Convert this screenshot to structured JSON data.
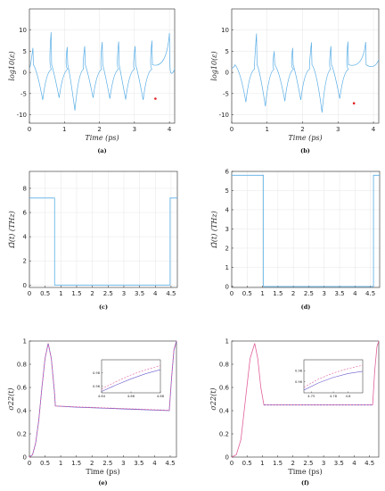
{
  "figure": {
    "colors": {
      "blue": "#5aaee6",
      "purple": "#6a5acd",
      "pink": "#e0609a",
      "red": "#e02020",
      "axis": "#262626",
      "grid": "#e6e6e6"
    }
  },
  "chart_data": [
    {
      "id": "a",
      "caption": "(a)",
      "type": "line",
      "xlabel": "Time (ps)",
      "ylabel": "log10(ε)",
      "xlim": [
        0,
        4.15
      ],
      "ylim": [
        -12,
        15
      ],
      "xticks": [
        0,
        1,
        2,
        3,
        4
      ],
      "yticks": [
        -10,
        -5,
        0,
        5,
        10
      ],
      "grid": true,
      "series": [
        {
          "cusps": [
            {
              "x": 0.38,
              "y": -6.5
            },
            {
              "x": 0.85,
              "y": -6.0
            },
            {
              "x": 1.3,
              "y": -9.0
            },
            {
              "x": 1.82,
              "y": -6.0
            },
            {
              "x": 2.3,
              "y": -6.2
            },
            {
              "x": 2.75,
              "y": -6.4
            },
            {
              "x": 3.25,
              "y": -6.5
            }
          ],
          "peaks": [
            {
              "x": 0.1,
              "y": 5.8
            },
            {
              "x": 0.62,
              "y": 9.5
            },
            {
              "x": 1.08,
              "y": 6.0
            },
            {
              "x": 1.58,
              "y": 6.2
            },
            {
              "x": 2.08,
              "y": 7.2
            },
            {
              "x": 2.55,
              "y": 7.3
            },
            {
              "x": 3.02,
              "y": 6.2
            },
            {
              "x": 3.5,
              "y": 7.5
            },
            {
              "x": 4.0,
              "y": 9.3
            }
          ],
          "end": {
            "x": 4.15,
            "y": 0.8
          }
        }
      ],
      "marker": {
        "x": 3.6,
        "y": -6.2
      }
    },
    {
      "id": "b",
      "caption": "(b)",
      "type": "line",
      "xlabel": "Time (ps)",
      "ylabel": "log10(ε)",
      "xlim": [
        0,
        4.15
      ],
      "ylim": [
        -12,
        15
      ],
      "xticks": [
        0,
        1,
        2,
        3,
        4
      ],
      "yticks": [
        -10,
        -5,
        0,
        5,
        10
      ],
      "grid": true,
      "series": [
        {
          "cusps": [
            {
              "x": 0.4,
              "y": -7.0
            },
            {
              "x": 0.95,
              "y": -8.0
            },
            {
              "x": 1.5,
              "y": -6.8
            },
            {
              "x": 1.95,
              "y": -6.5
            },
            {
              "x": 2.55,
              "y": -9.5
            },
            {
              "x": 3.05,
              "y": -6.2
            }
          ],
          "peaks": [
            {
              "x": 0.08,
              "y": 1.5
            },
            {
              "x": 0.7,
              "y": 9.2
            },
            {
              "x": 1.2,
              "y": 5.0
            },
            {
              "x": 1.72,
              "y": 5.8
            },
            {
              "x": 2.25,
              "y": 7.1
            },
            {
              "x": 2.8,
              "y": 6.2
            },
            {
              "x": 3.28,
              "y": 7.3
            },
            {
              "x": 3.78,
              "y": 7.2
            }
          ],
          "end": {
            "x": 4.15,
            "y": 3.0
          }
        }
      ],
      "marker": {
        "x": 3.45,
        "y": -7.3
      }
    },
    {
      "id": "c",
      "caption": "(c)",
      "type": "line",
      "xlabel": "",
      "ylabel": "Ω̃(t) (THz)",
      "xlim": [
        0,
        4.7
      ],
      "ylim": [
        -0.2,
        9.4
      ],
      "xticks": [
        0,
        0.5,
        1,
        1.5,
        2,
        2.5,
        3,
        3.5,
        4,
        4.5
      ],
      "yticks": [
        0,
        2,
        4,
        6,
        8
      ],
      "xticklabels": [
        "0",
        "0.5",
        "1",
        "1.5",
        "2",
        "2.5",
        "3",
        "3.5",
        "4",
        "4.5"
      ],
      "grid": true,
      "series": [
        {
          "name": "",
          "x": [
            0,
            0.8,
            0.8,
            4.47,
            4.47,
            4.7
          ],
          "y": [
            7.2,
            7.2,
            0,
            0,
            7.2,
            7.2
          ]
        }
      ]
    },
    {
      "id": "d",
      "caption": "(d)",
      "type": "line",
      "xlabel": "",
      "ylabel": "Ω̃(t) (THz)",
      "xlim": [
        0,
        4.8
      ],
      "ylim": [
        -0.05,
        6
      ],
      "xticks": [
        0,
        0.5,
        1,
        1.5,
        2,
        2.5,
        3,
        3.5,
        4,
        4.5
      ],
      "yticks": [
        0,
        1,
        2,
        3,
        4,
        5,
        6
      ],
      "xticklabels": [
        "0",
        "0.5",
        "1",
        "1.5",
        "2",
        "2.5",
        "3",
        "3.5",
        "4",
        "4.5"
      ],
      "grid": true,
      "series": [
        {
          "name": "",
          "x": [
            0,
            1.03,
            1.03,
            4.6,
            4.6,
            4.8
          ],
          "y": [
            5.8,
            5.8,
            0,
            0,
            5.8,
            5.8
          ]
        }
      ]
    },
    {
      "id": "e",
      "caption": "(e)",
      "type": "line",
      "xlabel": "Time (ps)",
      "ylabel": "σ22(t)",
      "xlim": [
        0,
        4.7
      ],
      "ylim": [
        0,
        1
      ],
      "xticks": [
        0,
        0.5,
        1,
        1.5,
        2,
        2.5,
        3,
        3.5,
        4,
        4.5
      ],
      "yticks": [
        0,
        0.2,
        0.4,
        0.6,
        0.8,
        1
      ],
      "xticklabels": [
        "0",
        "0.5",
        "1",
        "1.5",
        "2",
        "2.5",
        "3",
        "3.5",
        "4",
        "4.5"
      ],
      "grid": false,
      "series": [
        {
          "name": "",
          "color": "purple",
          "x": [
            0,
            0.1,
            0.2,
            0.3,
            0.4,
            0.5,
            0.6,
            0.7,
            0.8,
            0.83,
            1.5,
            2,
            2.5,
            3,
            3.5,
            4,
            4.47,
            4.55,
            4.62,
            4.7
          ],
          "y": [
            0,
            0.02,
            0.12,
            0.32,
            0.6,
            0.85,
            0.98,
            0.85,
            0.56,
            0.44,
            0.43,
            0.425,
            0.42,
            0.415,
            0.41,
            0.405,
            0.4,
            0.7,
            0.92,
            1.0
          ]
        },
        {
          "name": "",
          "color": "pink",
          "dashed": true,
          "x": [
            0,
            0.1,
            0.2,
            0.3,
            0.4,
            0.5,
            0.6,
            0.7,
            0.8,
            0.83,
            1.5,
            2,
            2.5,
            3,
            3.5,
            4,
            4.47,
            4.55,
            4.62,
            4.7
          ],
          "y": [
            0,
            0.02,
            0.12,
            0.32,
            0.6,
            0.85,
            0.98,
            0.85,
            0.56,
            0.44,
            0.433,
            0.428,
            0.423,
            0.418,
            0.413,
            0.408,
            0.403,
            0.71,
            0.93,
            1.0
          ]
        }
      ],
      "inset": {
        "xlim": [
          4.64,
          4.68
        ],
        "ylim": [
          0.95,
          1.0
        ],
        "xticks": [
          4.64,
          4.66,
          4.68
        ],
        "yticks": [
          0.96,
          0.98
        ],
        "xticklabels": [
          "4.64",
          "4.66",
          "4.68"
        ],
        "yticklabels": [
          "0.96",
          "0.98"
        ],
        "series": [
          {
            "color": "purple",
            "x": [
              4.64,
              4.65,
              4.66,
              4.67,
              4.68
            ],
            "y": [
              0.952,
              0.962,
              0.971,
              0.979,
              0.985
            ]
          },
          {
            "color": "pink",
            "dashed": true,
            "x": [
              4.64,
              4.65,
              4.66,
              4.67,
              4.68
            ],
            "y": [
              0.956,
              0.967,
              0.977,
              0.985,
              0.991
            ]
          }
        ]
      }
    },
    {
      "id": "f",
      "caption": "(f)",
      "type": "line",
      "xlabel": "Time (ps)",
      "ylabel": "σ22(t)",
      "xlim": [
        0,
        4.8
      ],
      "ylim": [
        0,
        1
      ],
      "xticks": [
        0,
        0.5,
        1,
        1.5,
        2,
        2.5,
        3,
        3.5,
        4,
        4.5
      ],
      "yticks": [
        0,
        0.2,
        0.4,
        0.6,
        0.8,
        1
      ],
      "xticklabels": [
        "0",
        "0.5",
        "1",
        "1.5",
        "2",
        "2.5",
        "3",
        "3.5",
        "4",
        "4.5"
      ],
      "grid": false,
      "series": [
        {
          "name": "",
          "color": "pink",
          "x": [
            0,
            0.15,
            0.3,
            0.45,
            0.6,
            0.75,
            0.85,
            0.95,
            1.05,
            1.5,
            2,
            2.5,
            3,
            3.5,
            4,
            4.6,
            4.67,
            4.74,
            4.8
          ],
          "y": [
            0,
            0.02,
            0.15,
            0.5,
            0.85,
            0.98,
            0.85,
            0.6,
            0.45,
            0.45,
            0.45,
            0.45,
            0.45,
            0.45,
            0.45,
            0.45,
            0.75,
            0.95,
            1.0
          ]
        },
        {
          "name": "",
          "color": "purple",
          "dashed": true,
          "x": [
            1.05,
            1.5,
            2,
            2.5,
            3,
            3.5,
            4,
            4.6
          ],
          "y": [
            0.448,
            0.448,
            0.448,
            0.448,
            0.448,
            0.448,
            0.448,
            0.448
          ]
        }
      ],
      "inset": {
        "xlim": [
          4.74,
          4.82
        ],
        "ylim": [
          0.94,
          1.0
        ],
        "xticks": [
          4.75,
          4.78,
          4.8
        ],
        "yticks": [
          0.96,
          0.98
        ],
        "xticklabels": [
          "4.75",
          "4.78",
          "4.8"
        ],
        "yticklabels": [
          "0.96",
          "0.98"
        ],
        "series": [
          {
            "color": "purple",
            "x": [
              4.74,
              4.76,
              4.78,
              4.8,
              4.82
            ],
            "y": [
              0.945,
              0.958,
              0.968,
              0.975,
              0.979
            ]
          },
          {
            "color": "pink",
            "dashed": true,
            "x": [
              4.74,
              4.76,
              4.78,
              4.8,
              4.82
            ],
            "y": [
              0.95,
              0.965,
              0.976,
              0.984,
              0.99
            ]
          }
        ]
      }
    }
  ]
}
